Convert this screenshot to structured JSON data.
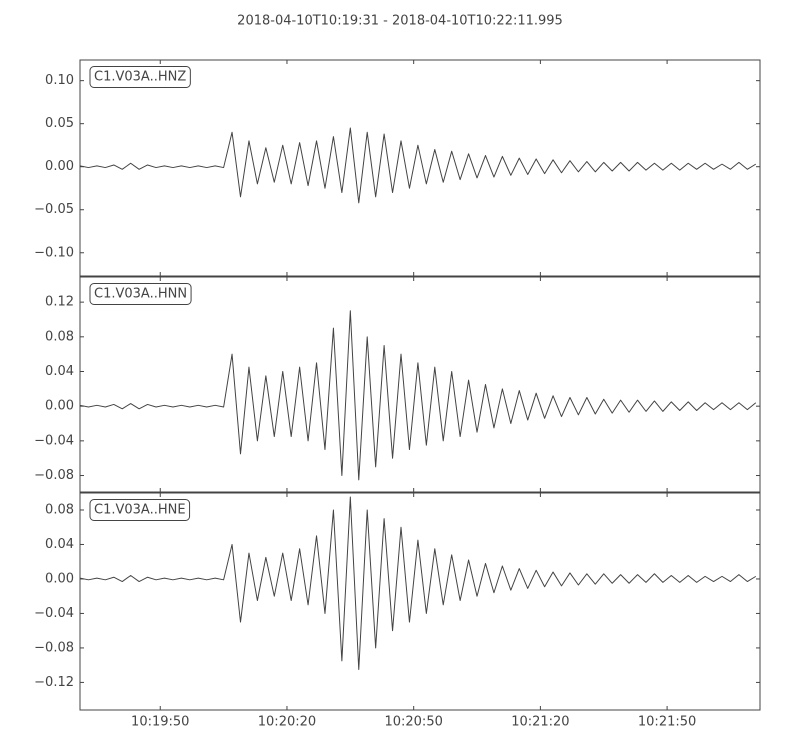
{
  "title": "2018-04-10T10:19:31  -  2018-04-10T10:22:11.995",
  "xlim": [
    "10:19:31",
    "10:22:11.995"
  ],
  "xticks": [
    "10:19:50",
    "10:20:20",
    "10:20:50",
    "10:21:20",
    "10:21:50"
  ],
  "x": [
    "10:19:31",
    "10:19:33",
    "10:19:35",
    "10:19:37",
    "10:19:39",
    "10:19:41",
    "10:19:43",
    "10:19:45",
    "10:19:47",
    "10:19:49",
    "10:19:51",
    "10:19:53",
    "10:19:55",
    "10:19:57",
    "10:19:59",
    "10:20:01",
    "10:20:03",
    "10:20:05",
    "10:20:07",
    "10:20:09",
    "10:20:11",
    "10:20:13",
    "10:20:15",
    "10:20:17",
    "10:20:19",
    "10:20:21",
    "10:20:23",
    "10:20:25",
    "10:20:27",
    "10:20:29",
    "10:20:31",
    "10:20:33",
    "10:20:35",
    "10:20:37",
    "10:20:39",
    "10:20:41",
    "10:20:43",
    "10:20:45",
    "10:20:47",
    "10:20:49",
    "10:20:51",
    "10:20:53",
    "10:20:55",
    "10:20:57",
    "10:20:59",
    "10:21:01",
    "10:21:03",
    "10:21:05",
    "10:21:07",
    "10:21:09",
    "10:21:11",
    "10:21:13",
    "10:21:15",
    "10:21:17",
    "10:21:19",
    "10:21:21",
    "10:21:23",
    "10:21:25",
    "10:21:27",
    "10:21:29",
    "10:21:31",
    "10:21:33",
    "10:21:35",
    "10:21:37",
    "10:21:39",
    "10:21:41",
    "10:21:43",
    "10:21:45",
    "10:21:47",
    "10:21:49",
    "10:21:51",
    "10:21:53",
    "10:21:55",
    "10:21:57",
    "10:21:59",
    "10:22:01",
    "10:22:03",
    "10:22:05",
    "10:22:07",
    "10:22:09",
    "10:22:11"
  ],
  "chart_data": [
    {
      "type": "line",
      "label": "C1.V03A..HNZ",
      "color": "#444444",
      "ylim": [
        -0.127,
        0.124
      ],
      "yticks": [
        {
          "value": 0.1,
          "label": "0.10"
        },
        {
          "value": 0.05,
          "label": "0.05"
        },
        {
          "value": 0,
          "label": "0.00"
        },
        {
          "value": -0.05,
          "label": "−0.05"
        },
        {
          "value": -0.1,
          "label": "−0.10"
        }
      ],
      "values": [
        0.001,
        -0.001,
        0.001,
        -0.001,
        0.002,
        -0.003,
        0.004,
        -0.003,
        0.002,
        -0.001,
        0.001,
        -0.001,
        0.001,
        -0.001,
        0.001,
        -0.001,
        0.001,
        -0.001,
        0.04,
        -0.035,
        0.03,
        -0.02,
        0.022,
        -0.018,
        0.025,
        -0.02,
        0.028,
        -0.022,
        0.03,
        -0.025,
        0.035,
        -0.03,
        0.045,
        -0.042,
        0.04,
        -0.035,
        0.038,
        -0.03,
        0.03,
        -0.025,
        0.025,
        -0.02,
        0.02,
        -0.018,
        0.018,
        -0.015,
        0.015,
        -0.013,
        0.013,
        -0.012,
        0.012,
        -0.01,
        0.01,
        -0.009,
        0.009,
        -0.008,
        0.008,
        -0.007,
        0.007,
        -0.006,
        0.006,
        -0.006,
        0.005,
        -0.005,
        0.005,
        -0.005,
        0.005,
        -0.004,
        0.004,
        -0.004,
        0.004,
        -0.004,
        0.004,
        -0.003,
        0.004,
        -0.003,
        0.003,
        -0.003,
        0.005,
        -0.003,
        0.003
      ]
    },
    {
      "type": "line",
      "label": "C1.V03A..HNN",
      "color": "#444444",
      "ylim": [
        -0.099,
        0.149
      ],
      "yticks": [
        {
          "value": 0.12,
          "label": "0.12"
        },
        {
          "value": 0.08,
          "label": "0.08"
        },
        {
          "value": 0.04,
          "label": "0.04"
        },
        {
          "value": 0,
          "label": "0.00"
        },
        {
          "value": -0.04,
          "label": "−0.04"
        },
        {
          "value": -0.08,
          "label": "−0.08"
        }
      ],
      "values": [
        0.001,
        -0.001,
        0.001,
        -0.001,
        0.002,
        -0.003,
        0.003,
        -0.003,
        0.002,
        -0.001,
        0.001,
        -0.001,
        0.001,
        -0.001,
        0.001,
        -0.001,
        0.001,
        -0.001,
        0.06,
        -0.055,
        0.045,
        -0.04,
        0.035,
        -0.035,
        0.04,
        -0.035,
        0.045,
        -0.04,
        0.05,
        -0.05,
        0.09,
        -0.08,
        0.11,
        -0.085,
        0.08,
        -0.07,
        0.07,
        -0.06,
        0.06,
        -0.05,
        0.05,
        -0.045,
        0.045,
        -0.04,
        0.04,
        -0.035,
        0.03,
        -0.03,
        0.025,
        -0.025,
        0.02,
        -0.02,
        0.018,
        -0.016,
        0.015,
        -0.014,
        0.012,
        -0.012,
        0.01,
        -0.01,
        0.01,
        -0.009,
        0.008,
        -0.008,
        0.007,
        -0.007,
        0.007,
        -0.006,
        0.006,
        -0.006,
        0.005,
        -0.005,
        0.005,
        -0.005,
        0.004,
        -0.004,
        0.004,
        -0.004,
        0.004,
        -0.004,
        0.004
      ]
    },
    {
      "type": "line",
      "label": "C1.V03A..HNE",
      "color": "#444444",
      "ylim": [
        -0.152,
        0.0997
      ],
      "yticks": [
        {
          "value": 0.08,
          "label": "0.08"
        },
        {
          "value": 0.04,
          "label": "0.04"
        },
        {
          "value": 0,
          "label": "0.00"
        },
        {
          "value": -0.04,
          "label": "−0.04"
        },
        {
          "value": -0.08,
          "label": "−0.08"
        },
        {
          "value": -0.12,
          "label": "−0.12"
        }
      ],
      "values": [
        0.001,
        -0.001,
        0.001,
        -0.001,
        0.002,
        -0.003,
        0.004,
        -0.003,
        0.002,
        -0.001,
        0.001,
        -0.001,
        0.001,
        -0.001,
        0.001,
        -0.001,
        0.001,
        -0.001,
        0.04,
        -0.05,
        0.03,
        -0.025,
        0.025,
        -0.02,
        0.03,
        -0.025,
        0.035,
        -0.03,
        0.05,
        -0.04,
        0.08,
        -0.095,
        0.095,
        -0.105,
        0.08,
        -0.08,
        0.07,
        -0.06,
        0.06,
        -0.05,
        0.045,
        -0.04,
        0.035,
        -0.03,
        0.028,
        -0.025,
        0.022,
        -0.02,
        0.018,
        -0.016,
        0.015,
        -0.013,
        0.012,
        -0.011,
        0.01,
        -0.009,
        0.008,
        -0.008,
        0.007,
        -0.007,
        0.006,
        -0.006,
        0.006,
        -0.005,
        0.005,
        -0.005,
        0.005,
        -0.004,
        0.006,
        -0.004,
        0.004,
        -0.004,
        0.004,
        -0.004,
        0.003,
        -0.003,
        0.003,
        -0.003,
        0.005,
        -0.003,
        0.003
      ]
    }
  ]
}
